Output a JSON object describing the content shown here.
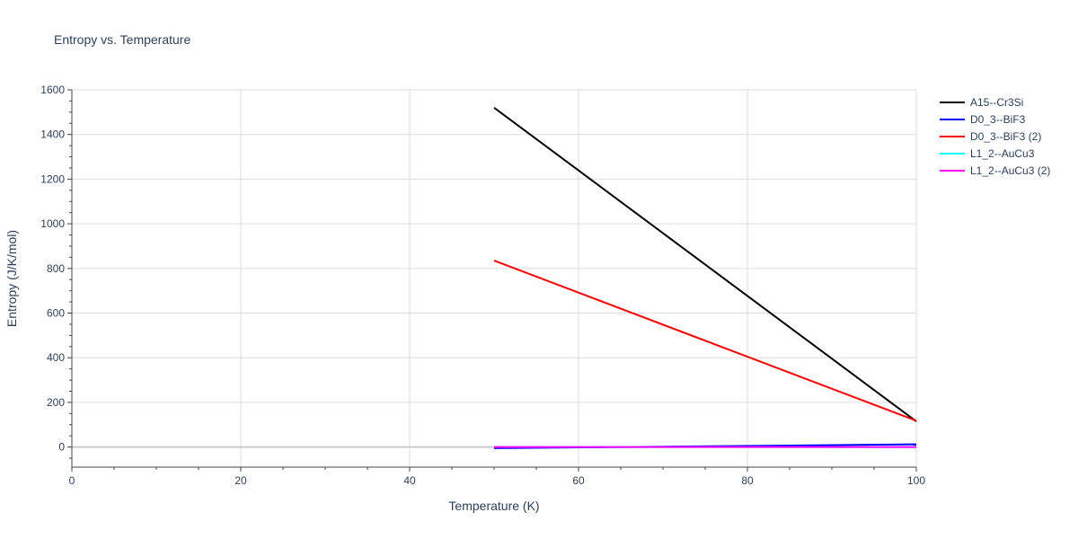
{
  "chart_data": {
    "type": "line",
    "title": "Entropy vs. Temperature",
    "xlabel": "Temperature (K)",
    "ylabel": "Entropy (J/K/mol)",
    "xlim": [
      0,
      100
    ],
    "ylim": [
      -90,
      1600
    ],
    "xticks": [
      0,
      20,
      40,
      60,
      80,
      100
    ],
    "yticks": [
      0,
      200,
      400,
      600,
      800,
      1000,
      1200,
      1400,
      1600
    ],
    "grid": true,
    "legend_position": "top-right",
    "series": [
      {
        "name": "A15--Cr3Si",
        "color": "#000000",
        "x": [
          50,
          100
        ],
        "y": [
          1520,
          115
        ]
      },
      {
        "name": "D0_3--BiF3",
        "color": "#0000ff",
        "x": [
          50,
          100
        ],
        "y": [
          -5,
          12
        ]
      },
      {
        "name": "D0_3--BiF3 (2)",
        "color": "#ff0000",
        "x": [
          50,
          100
        ],
        "y": [
          835,
          118
        ]
      },
      {
        "name": "L1_2--AuCu3",
        "color": "#00ffff",
        "x": [
          50,
          100
        ],
        "y": [
          0,
          0
        ]
      },
      {
        "name": "L1_2--AuCu3 (2)",
        "color": "#ff00ff",
        "x": [
          50,
          100
        ],
        "y": [
          0,
          0
        ]
      }
    ]
  }
}
